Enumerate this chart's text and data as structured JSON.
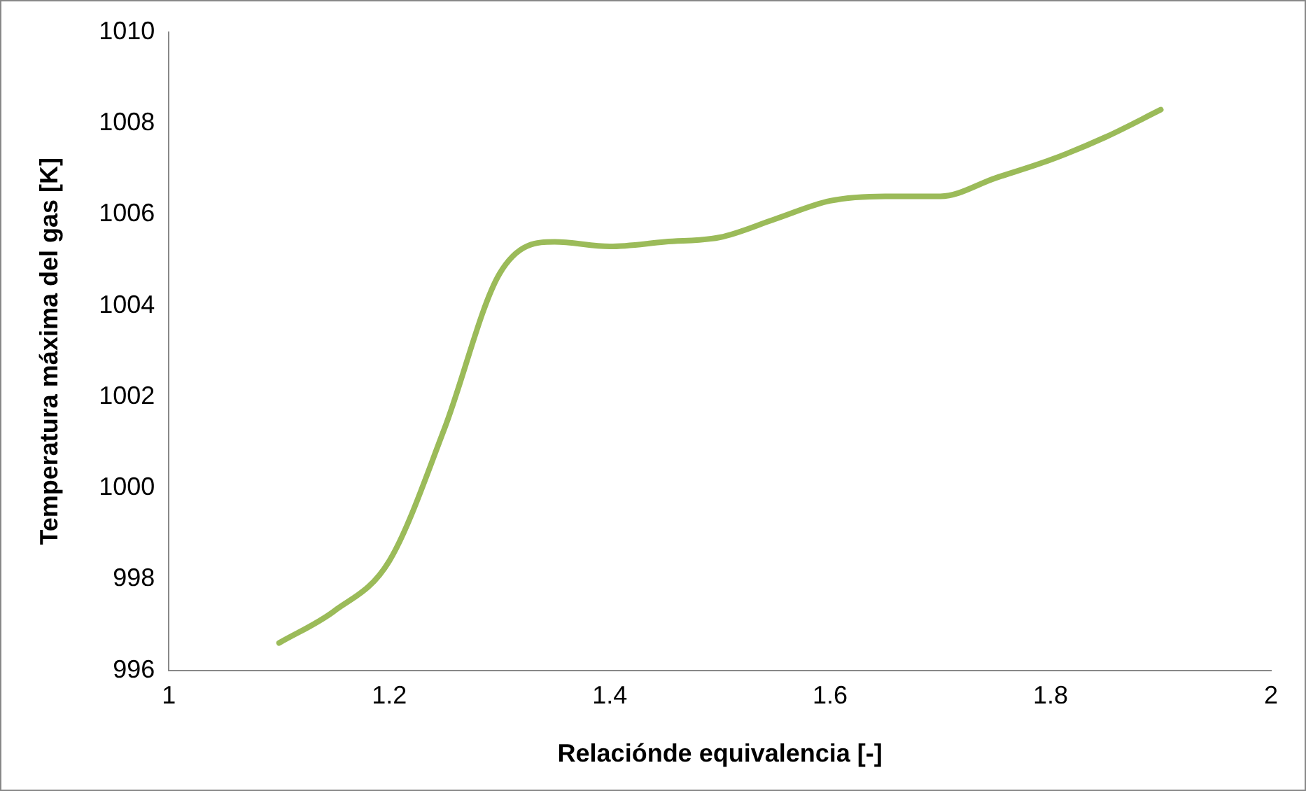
{
  "chart_data": {
    "type": "line",
    "xlabel": "Relaciónde equivalencia [-]",
    "ylabel": "Temperatura máxima del gas [K]",
    "x": [
      1.1,
      1.15,
      1.2,
      1.25,
      1.3,
      1.35,
      1.4,
      1.45,
      1.5,
      1.55,
      1.6,
      1.65,
      1.7,
      1.75,
      1.8,
      1.85,
      1.9
    ],
    "series": [
      {
        "color": "#9bbb59",
        "values": [
          996.6,
          997.3,
          998.4,
          1001.3,
          1004.7,
          1005.4,
          1005.3,
          1005.4,
          1005.5,
          1005.9,
          1006.3,
          1006.4,
          1006.4,
          1006.8,
          1007.2,
          1007.7,
          1008.3
        ]
      }
    ],
    "xlim": [
      1,
      2
    ],
    "xticks": [
      1,
      1.2,
      1.4,
      1.6,
      1.8,
      2
    ],
    "ylim": [
      996,
      1010
    ],
    "yticks": [
      996,
      998,
      1000,
      1002,
      1004,
      1006,
      1008,
      1010
    ],
    "grid": false,
    "legend": false,
    "marker": "none",
    "line_style": "solid"
  }
}
